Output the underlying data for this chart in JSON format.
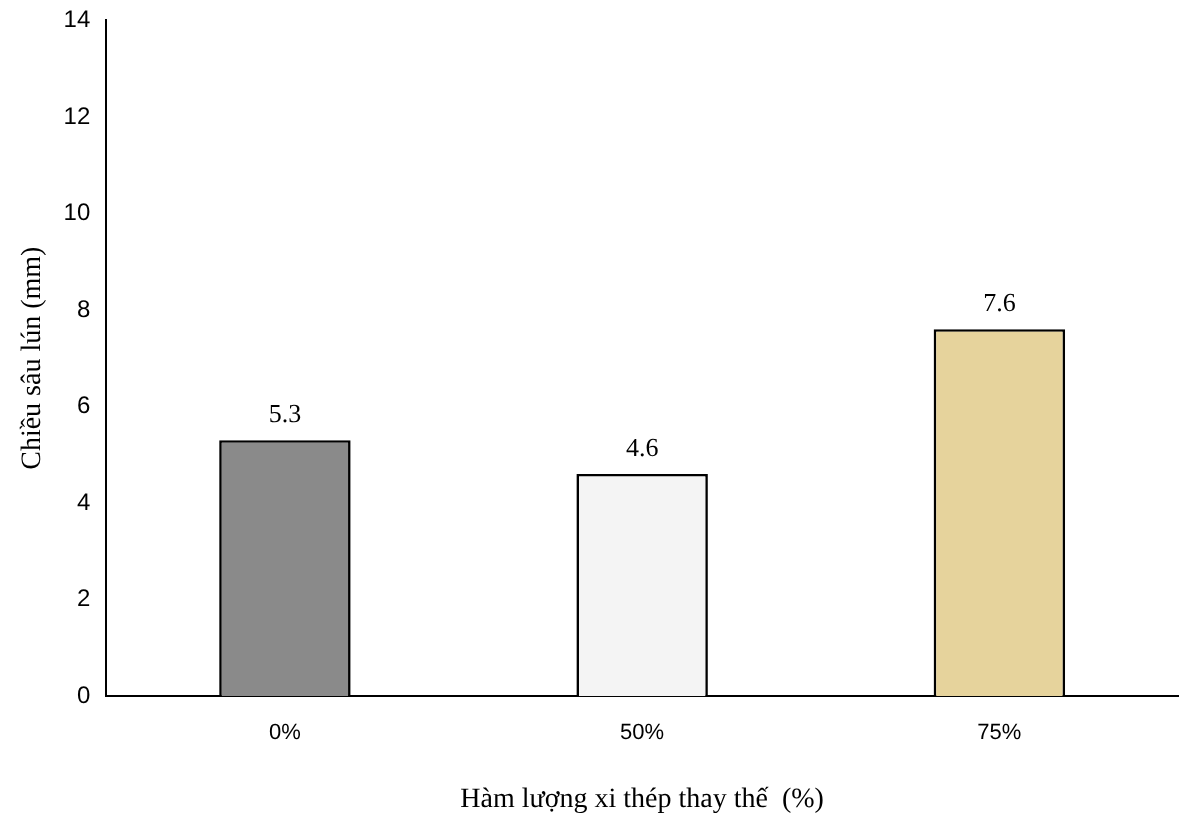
{
  "chart_data": {
    "type": "bar",
    "xlabel": "Hàm lượng xi thép thay thế  (%)",
    "ylabel": "Chiều sâu lún (mm)",
    "categories": [
      "0%",
      "50%",
      "75%"
    ],
    "values": [
      5.3,
      4.6,
      7.6
    ],
    "colors": [
      "#8a8a8a",
      "#f4f4f4",
      "#e6d39c"
    ],
    "ylim": [
      0,
      14
    ],
    "yticks": [
      0,
      2,
      4,
      6,
      8,
      10,
      12,
      14
    ],
    "grid": false,
    "data_labels": true,
    "legend": false
  }
}
